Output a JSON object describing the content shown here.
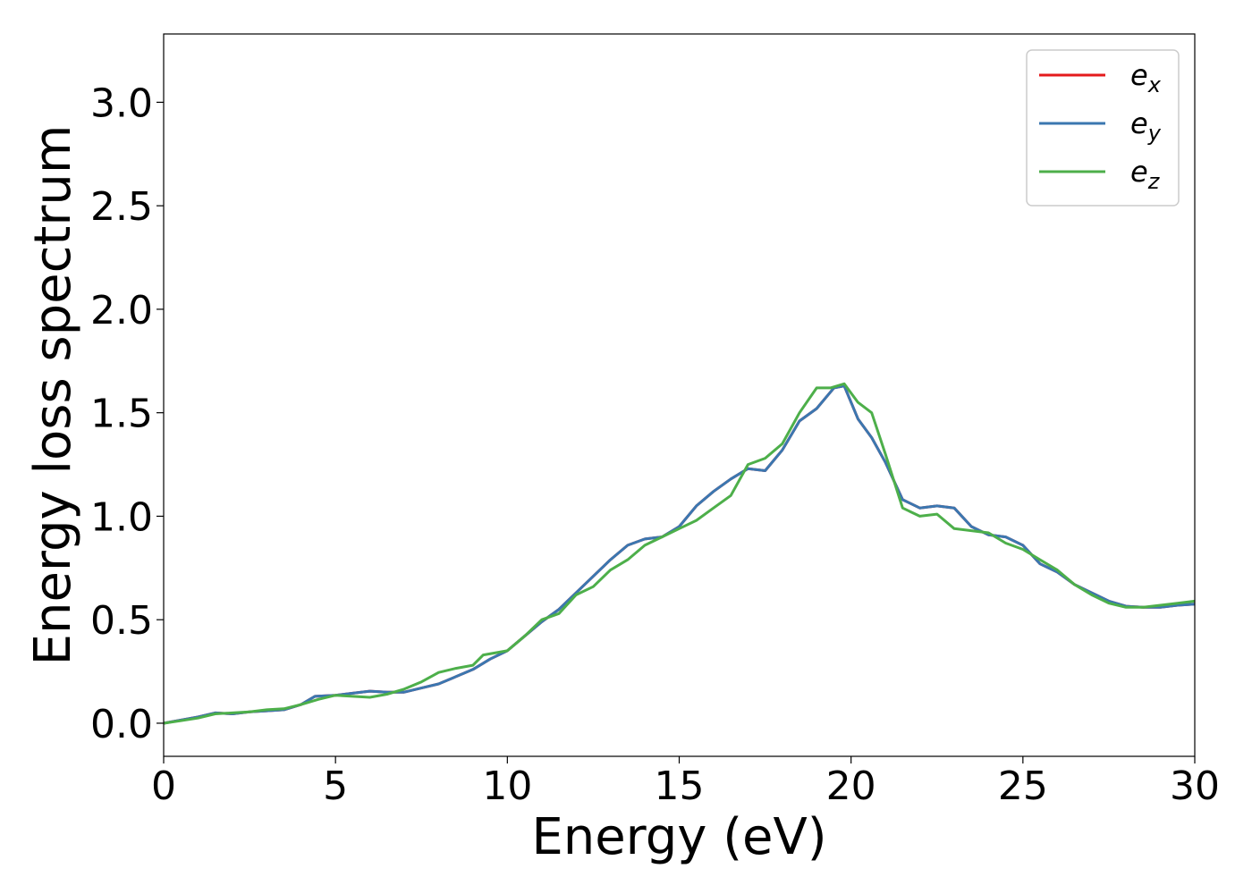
{
  "chart_data": {
    "type": "line",
    "xlabel": "Energy (eV)",
    "ylabel": "Energy loss spectrum",
    "xlim": [
      0,
      30
    ],
    "ylim": [
      -0.16,
      3.33
    ],
    "x_ticks": [
      "0",
      "5",
      "10",
      "15",
      "20",
      "25",
      "30"
    ],
    "y_ticks": [
      "0.0",
      "0.5",
      "1.0",
      "1.5",
      "2.0",
      "2.5",
      "3.0"
    ],
    "grid": false,
    "legend_position": "top-right",
    "series": [
      {
        "name": "e",
        "subscript": "x",
        "color": "#e41a1c",
        "points": [
          [
            0,
            0
          ],
          [
            0.5,
            0.015
          ],
          [
            1,
            0.03
          ],
          [
            1.5,
            0.05
          ],
          [
            2,
            0.045
          ],
          [
            2.5,
            0.055
          ],
          [
            3,
            0.06
          ],
          [
            3.5,
            0.065
          ],
          [
            4,
            0.09
          ],
          [
            4.4,
            0.13
          ],
          [
            5,
            0.135
          ],
          [
            5.5,
            0.145
          ],
          [
            6,
            0.155
          ],
          [
            6.5,
            0.15
          ],
          [
            7,
            0.15
          ],
          [
            7.5,
            0.17
          ],
          [
            8,
            0.19
          ],
          [
            8.5,
            0.225
          ],
          [
            9,
            0.26
          ],
          [
            9.5,
            0.31
          ],
          [
            10,
            0.35
          ],
          [
            10.5,
            0.42
          ],
          [
            11,
            0.49
          ],
          [
            11.5,
            0.55
          ],
          [
            12,
            0.63
          ],
          [
            12.5,
            0.71
          ],
          [
            13,
            0.79
          ],
          [
            13.5,
            0.86
          ],
          [
            14,
            0.89
          ],
          [
            14.5,
            0.9
          ],
          [
            15,
            0.95
          ],
          [
            15.5,
            1.05
          ],
          [
            16,
            1.12
          ],
          [
            16.5,
            1.18
          ],
          [
            17,
            1.23
          ],
          [
            17.5,
            1.22
          ],
          [
            18,
            1.32
          ],
          [
            18.5,
            1.46
          ],
          [
            19,
            1.52
          ],
          [
            19.5,
            1.62
          ],
          [
            19.8,
            1.63
          ],
          [
            20.2,
            1.47
          ],
          [
            20.6,
            1.38
          ],
          [
            21,
            1.26
          ],
          [
            21.5,
            1.08
          ],
          [
            22,
            1.04
          ],
          [
            22.5,
            1.05
          ],
          [
            23,
            1.04
          ],
          [
            23.5,
            0.95
          ],
          [
            24,
            0.91
          ],
          [
            24.5,
            0.9
          ],
          [
            25,
            0.86
          ],
          [
            25.5,
            0.77
          ],
          [
            26,
            0.73
          ],
          [
            26.5,
            0.67
          ],
          [
            27,
            0.63
          ],
          [
            27.5,
            0.59
          ],
          [
            28,
            0.565
          ],
          [
            28.5,
            0.56
          ],
          [
            29,
            0.56
          ],
          [
            29.5,
            0.57
          ],
          [
            30,
            0.575
          ]
        ]
      },
      {
        "name": "e",
        "subscript": "y",
        "color": "#3b77b0",
        "points": [
          [
            0,
            0
          ],
          [
            0.5,
            0.015
          ],
          [
            1,
            0.03
          ],
          [
            1.5,
            0.05
          ],
          [
            2,
            0.045
          ],
          [
            2.5,
            0.055
          ],
          [
            3,
            0.06
          ],
          [
            3.5,
            0.065
          ],
          [
            4,
            0.09
          ],
          [
            4.4,
            0.13
          ],
          [
            5,
            0.135
          ],
          [
            5.5,
            0.145
          ],
          [
            6,
            0.155
          ],
          [
            6.5,
            0.15
          ],
          [
            7,
            0.15
          ],
          [
            7.5,
            0.17
          ],
          [
            8,
            0.19
          ],
          [
            8.5,
            0.225
          ],
          [
            9,
            0.26
          ],
          [
            9.5,
            0.31
          ],
          [
            10,
            0.35
          ],
          [
            10.5,
            0.42
          ],
          [
            11,
            0.49
          ],
          [
            11.5,
            0.55
          ],
          [
            12,
            0.63
          ],
          [
            12.5,
            0.71
          ],
          [
            13,
            0.79
          ],
          [
            13.5,
            0.86
          ],
          [
            14,
            0.89
          ],
          [
            14.5,
            0.9
          ],
          [
            15,
            0.95
          ],
          [
            15.5,
            1.05
          ],
          [
            16,
            1.12
          ],
          [
            16.5,
            1.18
          ],
          [
            17,
            1.23
          ],
          [
            17.5,
            1.22
          ],
          [
            18,
            1.32
          ],
          [
            18.5,
            1.46
          ],
          [
            19,
            1.52
          ],
          [
            19.5,
            1.62
          ],
          [
            19.8,
            1.63
          ],
          [
            20.2,
            1.47
          ],
          [
            20.6,
            1.38
          ],
          [
            21,
            1.26
          ],
          [
            21.5,
            1.08
          ],
          [
            22,
            1.04
          ],
          [
            22.5,
            1.05
          ],
          [
            23,
            1.04
          ],
          [
            23.5,
            0.95
          ],
          [
            24,
            0.91
          ],
          [
            24.5,
            0.9
          ],
          [
            25,
            0.86
          ],
          [
            25.5,
            0.77
          ],
          [
            26,
            0.73
          ],
          [
            26.5,
            0.67
          ],
          [
            27,
            0.63
          ],
          [
            27.5,
            0.59
          ],
          [
            28,
            0.565
          ],
          [
            28.5,
            0.56
          ],
          [
            29,
            0.56
          ],
          [
            29.5,
            0.57
          ],
          [
            30,
            0.575
          ]
        ]
      },
      {
        "name": "e",
        "subscript": "z",
        "color": "#4daf4a",
        "points": [
          [
            0,
            0
          ],
          [
            0.5,
            0.012
          ],
          [
            1,
            0.025
          ],
          [
            1.5,
            0.045
          ],
          [
            2,
            0.05
          ],
          [
            2.5,
            0.055
          ],
          [
            3,
            0.065
          ],
          [
            3.5,
            0.07
          ],
          [
            4,
            0.09
          ],
          [
            4.5,
            0.115
          ],
          [
            5,
            0.135
          ],
          [
            5.5,
            0.13
          ],
          [
            6,
            0.125
          ],
          [
            6.5,
            0.14
          ],
          [
            7,
            0.165
          ],
          [
            7.5,
            0.2
          ],
          [
            8,
            0.245
          ],
          [
            8.5,
            0.265
          ],
          [
            9,
            0.28
          ],
          [
            9.3,
            0.33
          ],
          [
            10,
            0.35
          ],
          [
            10.5,
            0.42
          ],
          [
            11,
            0.5
          ],
          [
            11.5,
            0.53
          ],
          [
            12,
            0.62
          ],
          [
            12.5,
            0.66
          ],
          [
            13,
            0.74
          ],
          [
            13.5,
            0.79
          ],
          [
            14,
            0.86
          ],
          [
            14.5,
            0.9
          ],
          [
            15,
            0.94
          ],
          [
            15.5,
            0.98
          ],
          [
            16,
            1.04
          ],
          [
            16.5,
            1.1
          ],
          [
            17,
            1.25
          ],
          [
            17.5,
            1.28
          ],
          [
            18,
            1.35
          ],
          [
            18.5,
            1.5
          ],
          [
            19,
            1.62
          ],
          [
            19.4,
            1.62
          ],
          [
            19.8,
            1.64
          ],
          [
            20.2,
            1.55
          ],
          [
            20.6,
            1.5
          ],
          [
            21,
            1.3
          ],
          [
            21.5,
            1.04
          ],
          [
            22,
            1.0
          ],
          [
            22.5,
            1.01
          ],
          [
            23,
            0.94
          ],
          [
            23.5,
            0.93
          ],
          [
            24,
            0.92
          ],
          [
            24.5,
            0.87
          ],
          [
            25,
            0.84
          ],
          [
            25.5,
            0.79
          ],
          [
            26,
            0.74
          ],
          [
            26.5,
            0.67
          ],
          [
            27,
            0.62
          ],
          [
            27.5,
            0.58
          ],
          [
            28,
            0.56
          ],
          [
            28.5,
            0.56
          ],
          [
            29,
            0.57
          ],
          [
            29.5,
            0.58
          ],
          [
            30,
            0.59
          ]
        ]
      }
    ]
  }
}
